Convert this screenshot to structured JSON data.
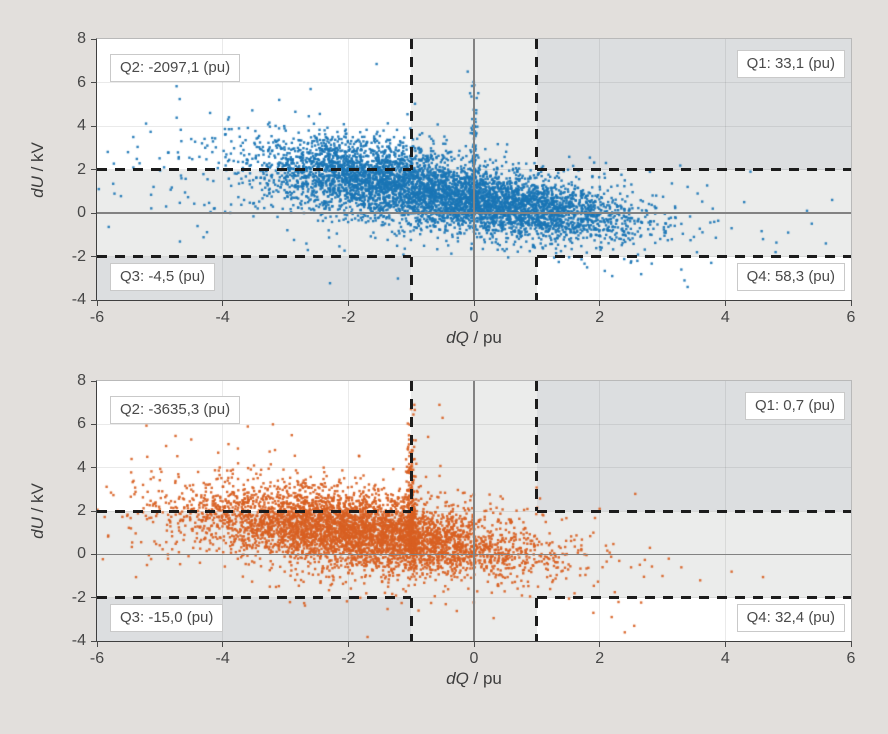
{
  "figure": {
    "background": "#e2dfdc",
    "description_visible_text_only": true
  },
  "styles": {
    "band_light": "#ebeceb",
    "corner_dark": "#dcdee0",
    "grid": "rgba(90,90,90,0.13)",
    "zero_line": "#828282",
    "dash": "#1c1c1c",
    "blue": "#1a75b5",
    "orange": "#d85f22"
  },
  "chart_data": [
    {
      "type": "scatter",
      "id": "top-blue",
      "color": "#1a75b5",
      "xlabel_italic": "dQ",
      "xlabel_rest": " / pu",
      "ylabel_italic": "dU",
      "ylabel_rest": " / kV",
      "xlim": [
        -6,
        6
      ],
      "ylim": [
        -4,
        8
      ],
      "xticks": [
        -6,
        -4,
        -2,
        0,
        2,
        4,
        6
      ],
      "yticks": [
        8,
        6,
        4,
        2,
        0,
        -2,
        -4
      ],
      "du_threshold_kv": 2,
      "dq_threshold_pu": 1,
      "grid": true,
      "quadrants": {
        "q1": "Q1: 33,1 (pu)",
        "q2": "Q2: -2097,1 (pu)",
        "q3": "Q3: -4,5 (pu)",
        "q4": "Q4: 58,3 (pu)"
      },
      "scatter": {
        "seed": 42,
        "point_size": 2.4,
        "n_points_approx": 6200,
        "clusters": [
          {
            "n": 2600,
            "cx": -1.55,
            "cy": 1.55,
            "sx": 0.95,
            "sy": 0.95,
            "corr": -0.45
          },
          {
            "n": 2400,
            "cx": 0.55,
            "cy": 0.35,
            "sx": 0.95,
            "sy": 0.75,
            "corr": -0.35
          },
          {
            "n": 700,
            "cx": -1.2,
            "cy": 1.0,
            "sx": 2.1,
            "sy": 1.5,
            "corr": -0.45
          },
          {
            "n": 150,
            "cx": 1.8,
            "cy": -0.3,
            "sx": 0.55,
            "sy": 0.75,
            "corr": -0.2
          }
        ],
        "spikes": [
          {
            "x": 0.0,
            "n": 130,
            "jitter": 0.035,
            "scale": 2.6,
            "ymax": 7.0
          }
        ],
        "extra_points": [
          [
            2.9,
            0.8
          ],
          [
            3.2,
            0.3
          ],
          [
            3.3,
            -0.5
          ],
          [
            3.5,
            -1.1
          ],
          [
            3.8,
            0.2
          ],
          [
            4.1,
            -0.7
          ],
          [
            4.3,
            0.5
          ],
          [
            4.6,
            -1.2
          ],
          [
            5.0,
            -0.9
          ],
          [
            5.3,
            0.1
          ],
          [
            5.6,
            -1.4
          ],
          [
            5.7,
            0.6
          ],
          [
            3.3,
            -2.6
          ],
          [
            3.35,
            -3.1
          ],
          [
            3.4,
            -3.4
          ],
          [
            2.6,
            -2.2
          ],
          [
            2.2,
            -2.9
          ],
          [
            1.8,
            -2.5
          ],
          [
            4.8,
            -1.8
          ],
          [
            2.4,
            1.5
          ],
          [
            2.8,
            1.9
          ],
          [
            3.4,
            1.2
          ],
          [
            4.4,
            1.9
          ],
          [
            2.1,
            2.3
          ],
          [
            -1.55,
            6.85
          ],
          [
            -2.6,
            5.7
          ],
          [
            -3.1,
            5.2
          ],
          [
            -3.9,
            4.4
          ],
          [
            -4.2,
            4.6
          ],
          [
            -4.5,
            3.4
          ],
          [
            -4.7,
            2.5
          ],
          [
            -5.1,
            1.2
          ],
          [
            -4.9,
            0.3
          ],
          [
            -4.4,
            -0.6
          ],
          [
            -0.1,
            6.5
          ]
        ]
      }
    },
    {
      "type": "scatter",
      "id": "bottom-orange",
      "color": "#d85f22",
      "xlabel_italic": "dQ",
      "xlabel_rest": " / pu",
      "ylabel_italic": "dU",
      "ylabel_rest": " / kV",
      "xlim": [
        -6,
        6
      ],
      "ylim": [
        -4,
        8
      ],
      "xticks": [
        -6,
        -4,
        -2,
        0,
        2,
        4,
        6
      ],
      "yticks": [
        8,
        6,
        4,
        2,
        0,
        -2,
        -4
      ],
      "du_threshold_kv": 2,
      "dq_threshold_pu": 1,
      "grid": true,
      "quadrants": {
        "q1": "Q1: 0,7 (pu)",
        "q2": "Q2: -3635,3 (pu)",
        "q3": "Q3: -15,0 (pu)",
        "q4": "Q4: 32,4 (pu)"
      },
      "scatter": {
        "seed": 77,
        "point_size": 2.4,
        "n_points_approx": 5400,
        "clusters": [
          {
            "n": 3000,
            "cx": -2.3,
            "cy": 1.3,
            "sx": 1.15,
            "sy": 0.95,
            "corr": -0.35
          },
          {
            "n": 1200,
            "cx": -1.0,
            "cy": 0.6,
            "sx": 0.9,
            "sy": 0.8,
            "corr": -0.3
          },
          {
            "n": 650,
            "cx": -2.2,
            "cy": 1.0,
            "sx": 1.9,
            "sy": 1.5,
            "corr": -0.35
          },
          {
            "n": 220,
            "cx": 0.5,
            "cy": 0.0,
            "sx": 0.7,
            "sy": 0.6,
            "corr": -0.2
          }
        ],
        "spikes": [
          {
            "x": -1.0,
            "n": 300,
            "jitter": 0.04,
            "scale": 2.6,
            "ymax": 7.0
          }
        ],
        "extra_points": [
          [
            -5.45,
            4.4
          ],
          [
            -5.2,
            4.5
          ],
          [
            -4.9,
            5.0
          ],
          [
            -4.5,
            5.3
          ],
          [
            -3.6,
            5.9
          ],
          [
            -3.2,
            6.0
          ],
          [
            -2.9,
            5.5
          ],
          [
            2.4,
            -3.6
          ],
          [
            2.55,
            -3.3
          ],
          [
            1.9,
            -2.7
          ],
          [
            2.3,
            -2.2
          ],
          [
            3.0,
            -1.0
          ],
          [
            3.3,
            -0.6
          ],
          [
            3.6,
            -1.2
          ],
          [
            4.1,
            -0.8
          ],
          [
            4.6,
            -1.05
          ],
          [
            2.8,
            0.3
          ],
          [
            3.1,
            -0.2
          ],
          [
            1.9,
            1.0
          ],
          [
            2.1,
            0.4
          ],
          [
            2.5,
            -0.6
          ],
          [
            -0.5,
            6.3
          ],
          [
            -0.55,
            6.9
          ],
          [
            -0.95,
            6.9
          ],
          [
            1.6,
            -1.8
          ],
          [
            1.4,
            1.6
          ],
          [
            2.0,
            2.1
          ]
        ]
      }
    }
  ]
}
